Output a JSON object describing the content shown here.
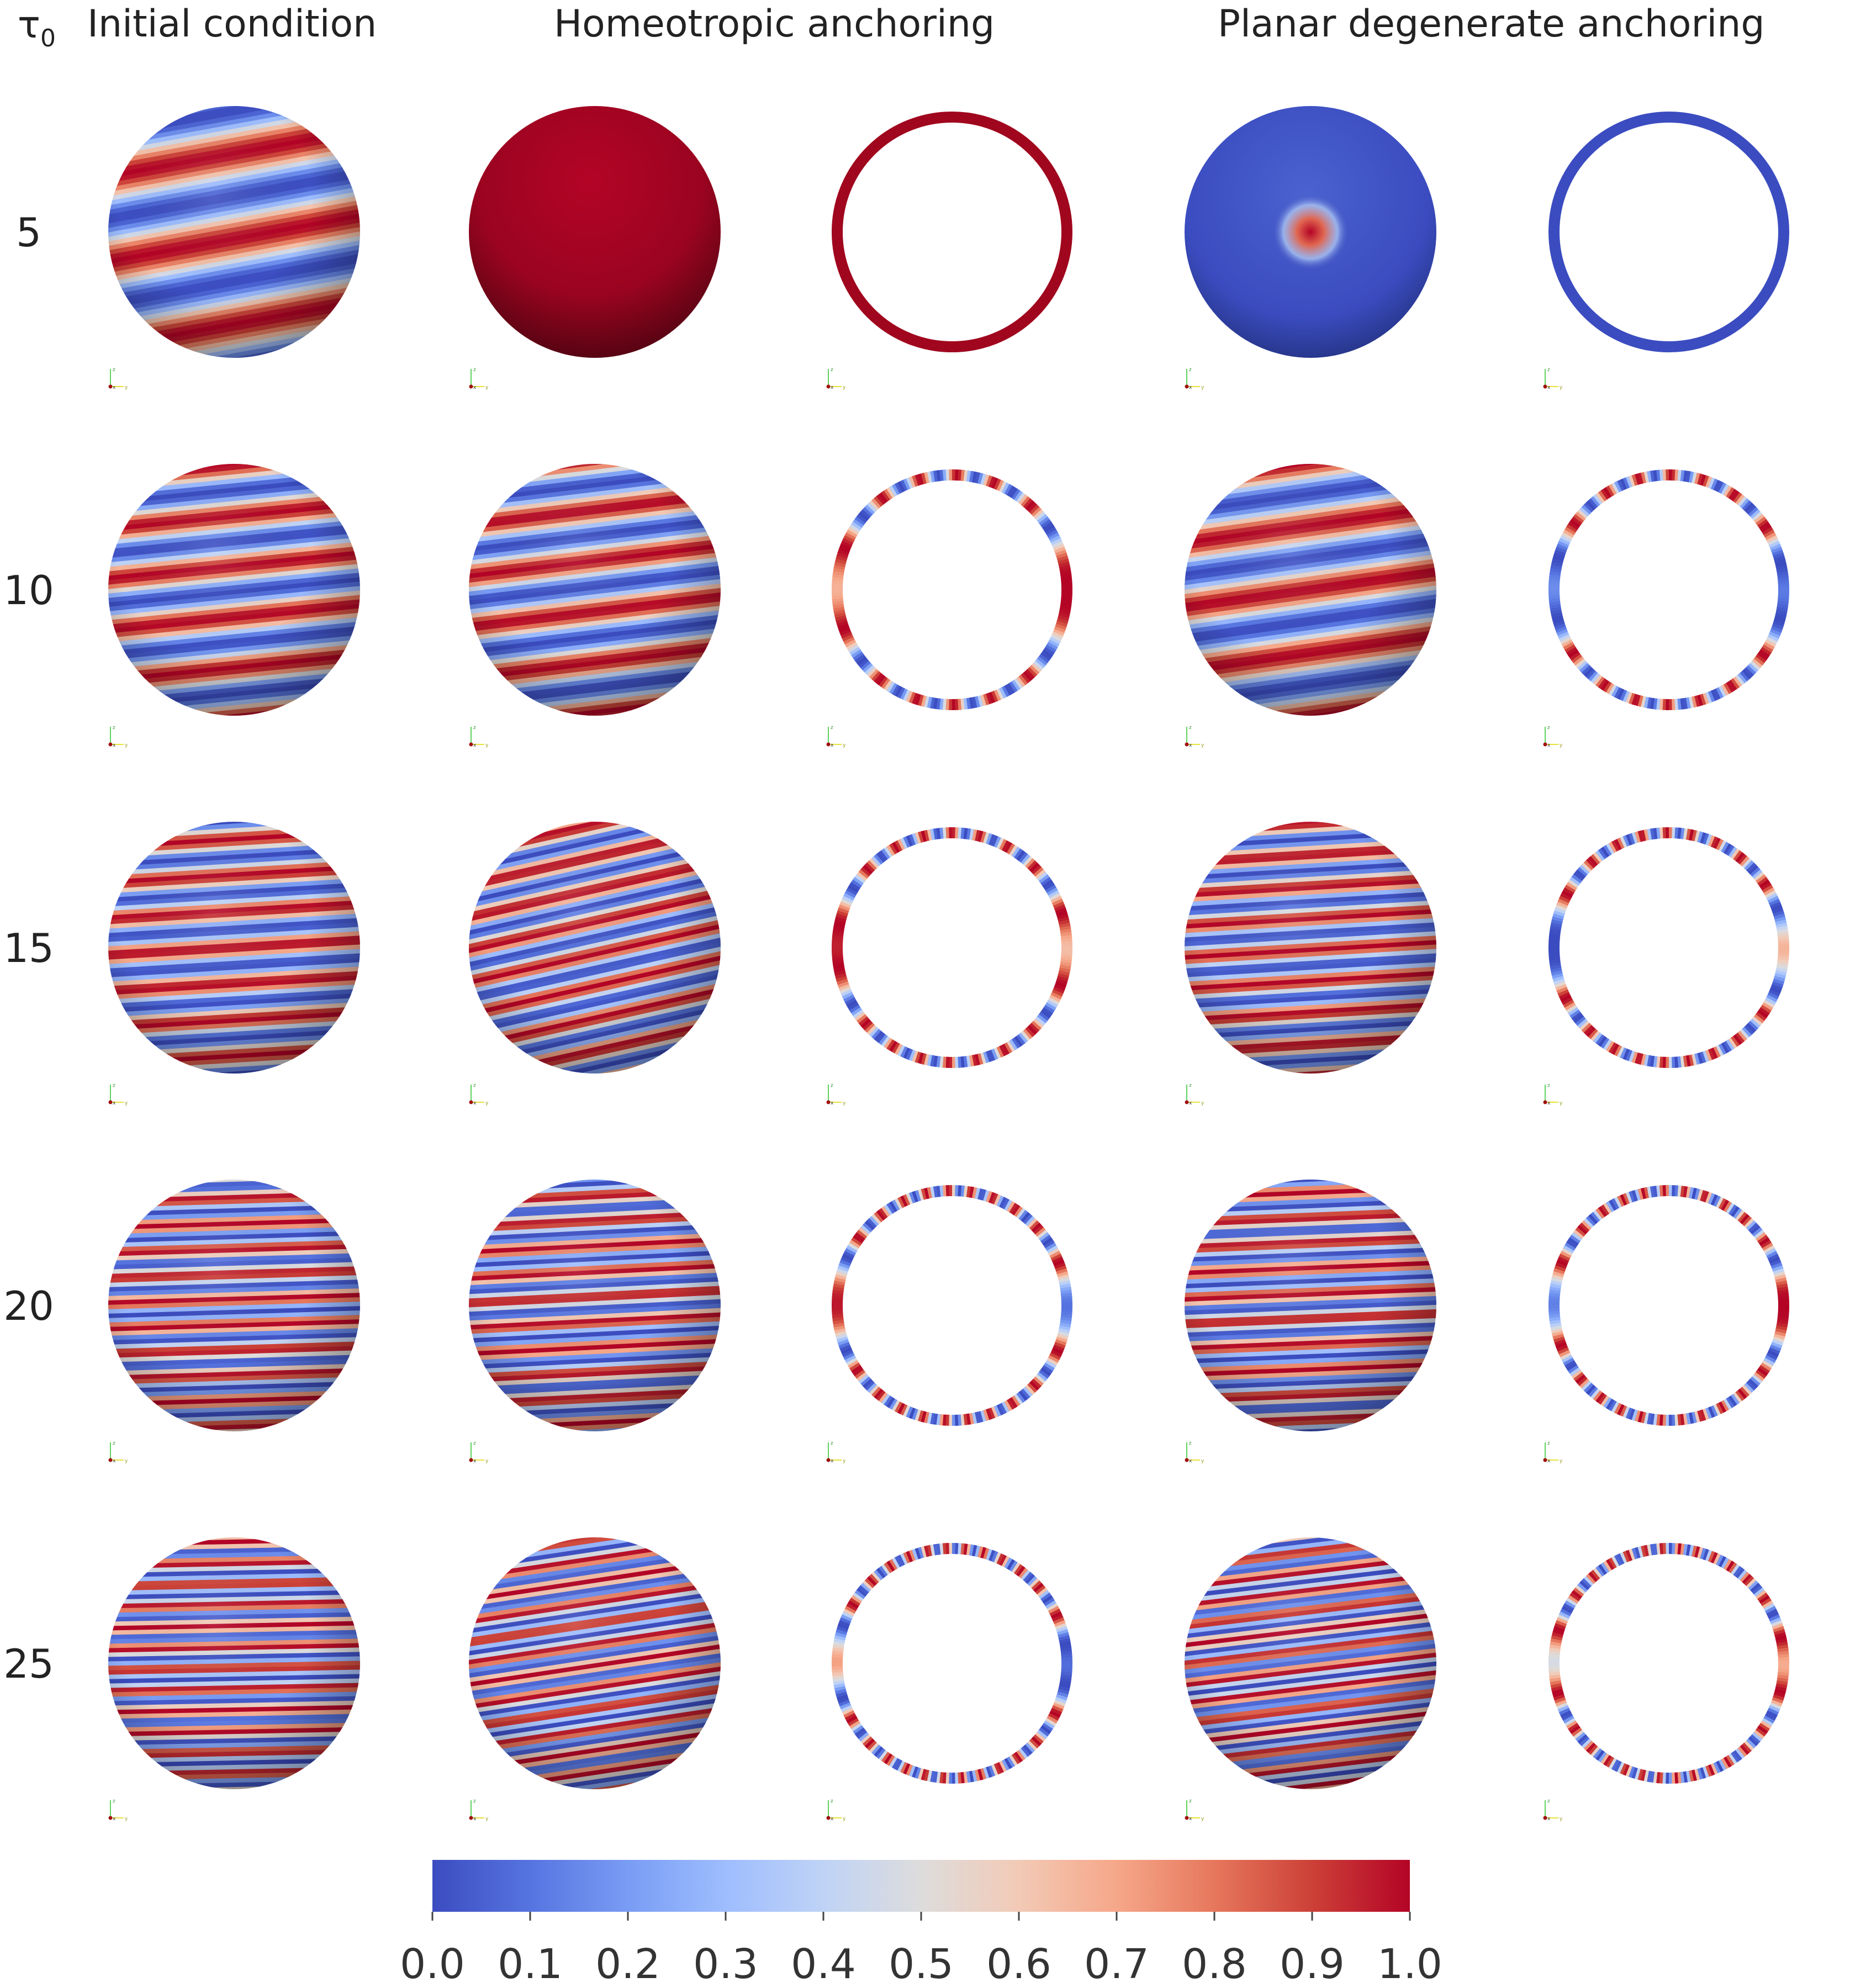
{
  "header": {
    "row_symbol": "τ",
    "row_symbol_sub": "0",
    "col_initial": "Initial condition",
    "col_homeotropic": "Homeotropic anchoring",
    "col_planar": "Planar degenerate anchoring"
  },
  "rows": [
    {
      "tau0": "5",
      "ic_bands": 3,
      "ic_tilt": 0.18,
      "homeo": "uniform",
      "homeo_bands": 0,
      "homeo_tilt": 0,
      "planar": "defect",
      "planar_bands": 0,
      "planar_tilt": 0,
      "homeo_ring": "uniform-red",
      "planar_ring": "uniform-blue"
    },
    {
      "tau0": "10",
      "ic_bands": 5,
      "ic_tilt": 0.1,
      "homeo": "stripes",
      "homeo_bands": 5,
      "homeo_tilt": 0.12,
      "planar": "stripes",
      "planar_bands": 4,
      "planar_tilt": 0.14,
      "homeo_ring": "stripes",
      "planar_ring": "stripes"
    },
    {
      "tau0": "15",
      "ic_bands": 7,
      "ic_tilt": 0.06,
      "homeo": "stripes",
      "homeo_bands": 8,
      "homeo_tilt": 0.22,
      "planar": "stripes",
      "planar_bands": 8,
      "planar_tilt": 0.06,
      "homeo_ring": "stripes",
      "planar_ring": "stripes"
    },
    {
      "tau0": "20",
      "ic_bands": 10,
      "ic_tilt": 0.03,
      "homeo": "stripes",
      "homeo_bands": 10,
      "homeo_tilt": 0.05,
      "planar": "stripes",
      "planar_bands": 10,
      "planar_tilt": 0.04,
      "homeo_ring": "stripes",
      "planar_ring": "stripes"
    },
    {
      "tau0": "25",
      "ic_bands": 12,
      "ic_tilt": 0.02,
      "homeo": "stripes",
      "homeo_bands": 12,
      "homeo_tilt": 0.15,
      "planar": "stripes",
      "planar_bands": 13,
      "planar_tilt": 0.12,
      "homeo_ring": "stripes",
      "planar_ring": "stripes"
    }
  ],
  "axes_triad": {
    "z": "z",
    "x": "x",
    "y": "y"
  },
  "colorbar": {
    "colormap": "coolwarm",
    "color_min": "#3b4cc0",
    "color_mid": "#dddcdc",
    "color_max": "#b40426",
    "range": [
      0,
      1
    ],
    "ticks": [
      "0.0",
      "0.1",
      "0.2",
      "0.3",
      "0.4",
      "0.5",
      "0.6",
      "0.7",
      "0.8",
      "0.9",
      "1.0"
    ]
  }
}
